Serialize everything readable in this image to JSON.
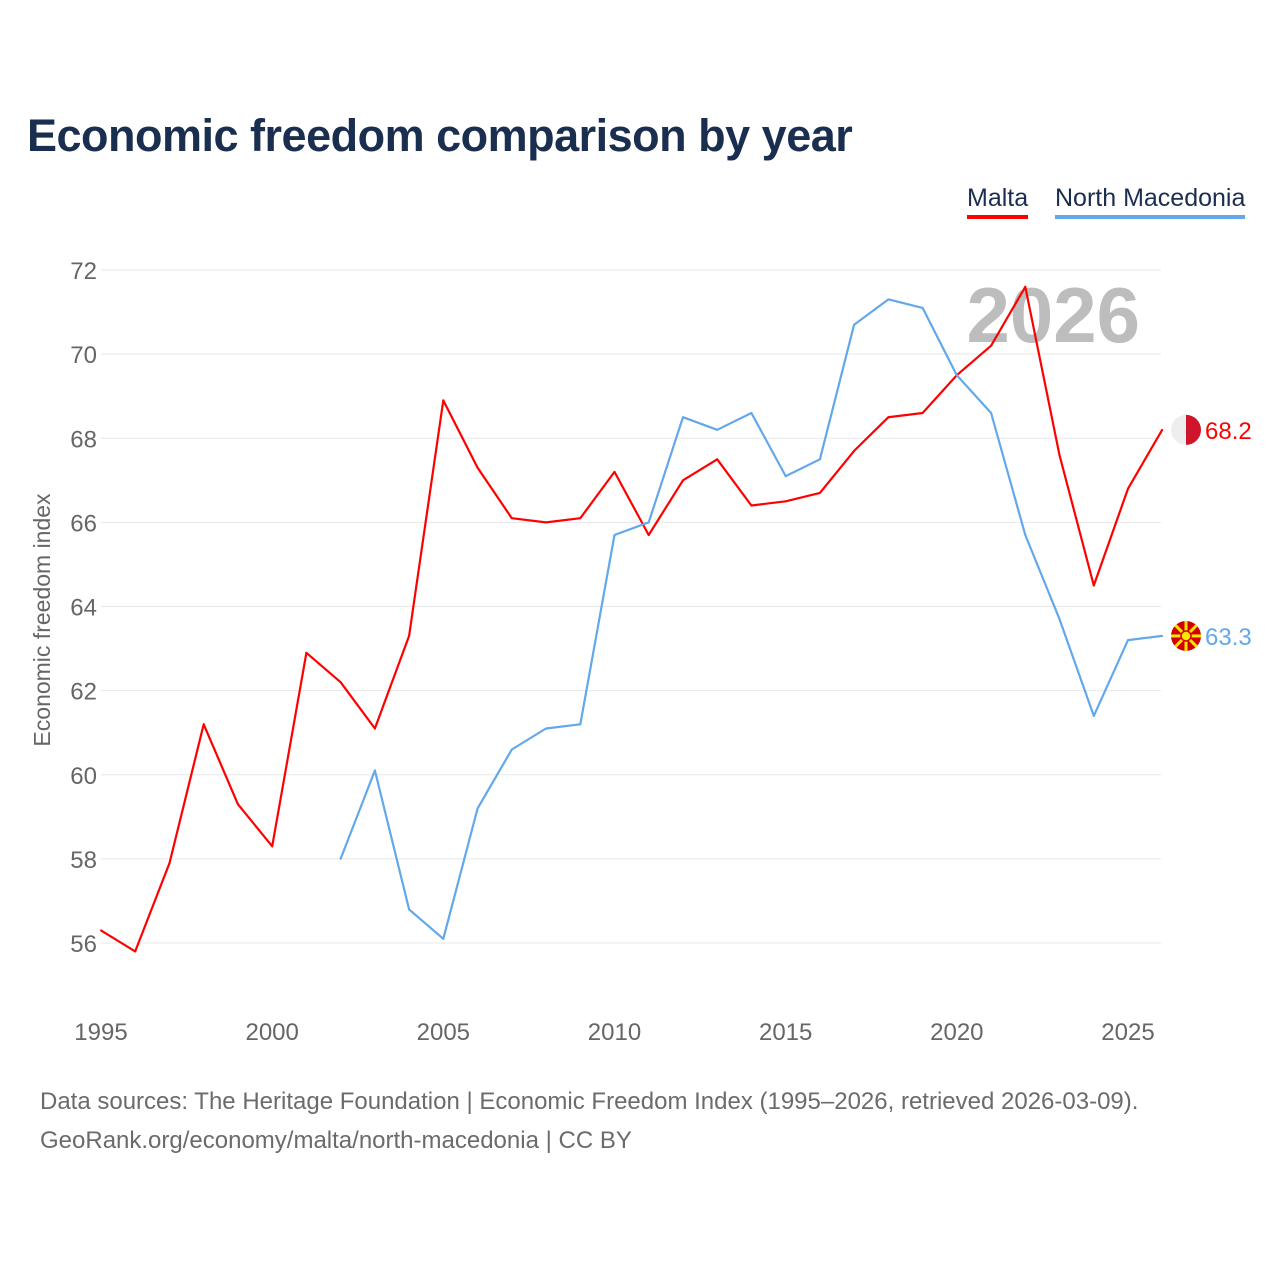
{
  "chart_data": {
    "type": "line",
    "title": "Economic freedom comparison by year",
    "xlabel": "",
    "ylabel": "Economic freedom index",
    "xlim": [
      1995,
      2026
    ],
    "ylim": [
      55,
      72
    ],
    "yticks": [
      56,
      58,
      60,
      62,
      64,
      66,
      68,
      70,
      72
    ],
    "xticks": [
      1995,
      2000,
      2005,
      2010,
      2015,
      2020,
      2025
    ],
    "grid": true,
    "legend_position": "top-right",
    "watermark_year": "2026",
    "series": [
      {
        "name": "Malta",
        "color": "#ff0000",
        "end_label": "68.2",
        "x": [
          1995,
          1996,
          1997,
          1998,
          1999,
          2000,
          2001,
          2002,
          2003,
          2004,
          2005,
          2006,
          2007,
          2008,
          2009,
          2010,
          2011,
          2012,
          2013,
          2014,
          2015,
          2016,
          2017,
          2018,
          2019,
          2020,
          2021,
          2022,
          2023,
          2024,
          2025,
          2026
        ],
        "values": [
          56.3,
          55.8,
          57.9,
          61.2,
          59.3,
          58.3,
          62.9,
          62.2,
          61.1,
          63.3,
          68.9,
          67.3,
          66.1,
          66.0,
          66.1,
          67.2,
          65.7,
          67.0,
          67.5,
          66.4,
          66.5,
          66.7,
          67.7,
          68.5,
          68.6,
          69.5,
          70.2,
          71.6,
          67.6,
          64.5,
          66.8,
          68.2
        ]
      },
      {
        "name": "North Macedonia",
        "color": "#62a8ea",
        "end_label": "63.3",
        "x": [
          2002,
          2003,
          2004,
          2005,
          2006,
          2007,
          2008,
          2009,
          2010,
          2011,
          2012,
          2013,
          2014,
          2015,
          2016,
          2017,
          2018,
          2019,
          2020,
          2021,
          2022,
          2023,
          2024,
          2025,
          2026
        ],
        "values": [
          58.0,
          60.1,
          56.8,
          56.1,
          59.2,
          60.6,
          61.1,
          61.2,
          65.7,
          66.0,
          68.5,
          68.2,
          68.6,
          67.1,
          67.5,
          70.7,
          71.3,
          71.1,
          69.5,
          68.6,
          65.7,
          63.7,
          61.4,
          63.2,
          63.3
        ]
      }
    ]
  },
  "footer": {
    "source": "Data sources: The Heritage Foundation | Economic Freedom Index (1995–2026, retrieved 2026-03-09).",
    "credit": "GeoRank.org/economy/malta/north-macedonia | CC BY"
  }
}
